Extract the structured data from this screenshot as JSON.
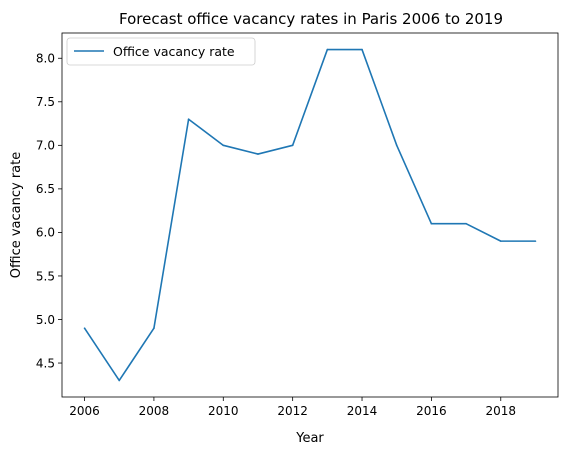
{
  "chart_data": {
    "type": "line",
    "title": "Forecast office vacancy rates in Paris 2006 to 2019",
    "xlabel": "Year",
    "ylabel": "Office vacancy rate",
    "x": [
      2006,
      2007,
      2008,
      2009,
      2010,
      2011,
      2012,
      2013,
      2014,
      2015,
      2016,
      2017,
      2018,
      2019
    ],
    "series": [
      {
        "name": "Office vacancy rate",
        "color": "#1f77b4",
        "values": [
          4.9,
          4.3,
          4.9,
          7.3,
          7.0,
          6.9,
          7.0,
          8.1,
          8.1,
          7.0,
          6.1,
          6.1,
          5.9,
          5.9
        ]
      }
    ],
    "xlim": [
      2005.35,
      2019.65
    ],
    "ylim": [
      4.11,
      8.29
    ],
    "xticks": [
      "2006",
      "2008",
      "2010",
      "2012",
      "2014",
      "2016",
      "2018"
    ],
    "yticks": [
      "4.5",
      "5.0",
      "5.5",
      "6.0",
      "6.5",
      "7.0",
      "7.5",
      "8.0"
    ],
    "grid": false,
    "legend_position": "upper-left"
  }
}
